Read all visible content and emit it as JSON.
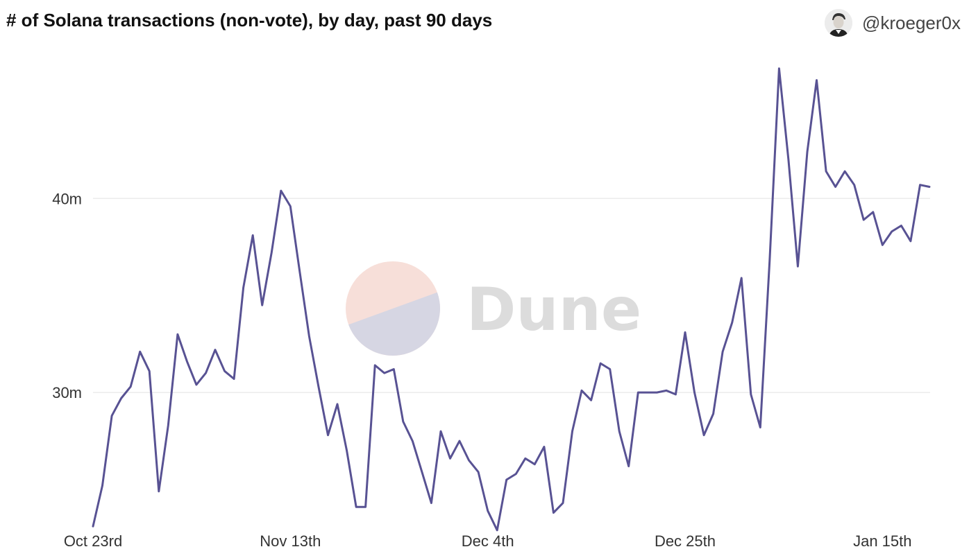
{
  "header": {
    "title": "# of Solana transactions (non-vote), by day, past 90 days",
    "author_handle": "@kroeger0x"
  },
  "watermark": {
    "text": "Dune",
    "logo_top_color": "#f7dfd9",
    "logo_bottom_color": "#d6d6e3"
  },
  "chart_data": {
    "type": "line",
    "title": "# of Solana transactions (non-vote), by day, past 90 days",
    "xlabel": "",
    "ylabel": "",
    "x_start": "2022-10-23",
    "x_ticks": [
      {
        "index": 0,
        "label": "Oct 23rd"
      },
      {
        "index": 21,
        "label": "Nov 13th"
      },
      {
        "index": 42,
        "label": "Dec 4th"
      },
      {
        "index": 63,
        "label": "Dec 25th"
      },
      {
        "index": 84,
        "label": "Jan 15th"
      }
    ],
    "y_ticks": [
      {
        "value": 30000000,
        "label": "30m"
      },
      {
        "value": 40000000,
        "label": "40m"
      }
    ],
    "ylim": [
      23000000,
      47300000
    ],
    "grid": "horizontal",
    "color": "#585293",
    "series": [
      {
        "values": [
          23100000,
          25200000,
          28800000,
          29700000,
          30300000,
          32100000,
          31100000,
          24900000,
          28300000,
          33000000,
          31600000,
          30400000,
          31000000,
          32200000,
          31100000,
          30700000,
          35400000,
          38100000,
          34500000,
          37200000,
          40400000,
          39600000,
          36200000,
          32900000,
          30300000,
          27800000,
          29400000,
          27000000,
          24100000,
          24100000,
          31400000,
          31000000,
          31200000,
          28500000,
          27500000,
          25900000,
          24300000,
          28000000,
          26600000,
          27500000,
          26500000,
          25900000,
          23900000,
          22900000,
          25500000,
          25800000,
          26600000,
          26300000,
          27200000,
          23800000,
          24300000,
          28000000,
          30100000,
          29600000,
          31500000,
          31200000,
          28000000,
          26200000,
          30000000,
          30000000,
          30000000,
          30100000,
          29900000,
          33100000,
          30000000,
          27800000,
          28900000,
          32100000,
          33600000,
          35900000,
          29900000,
          28200000,
          36800000,
          46700000,
          42000000,
          36500000,
          42400000,
          46100000,
          41400000,
          40600000,
          41400000,
          40700000,
          38900000,
          39300000,
          37600000,
          38300000,
          38600000,
          37800000,
          40700000,
          40600000
        ]
      }
    ]
  }
}
